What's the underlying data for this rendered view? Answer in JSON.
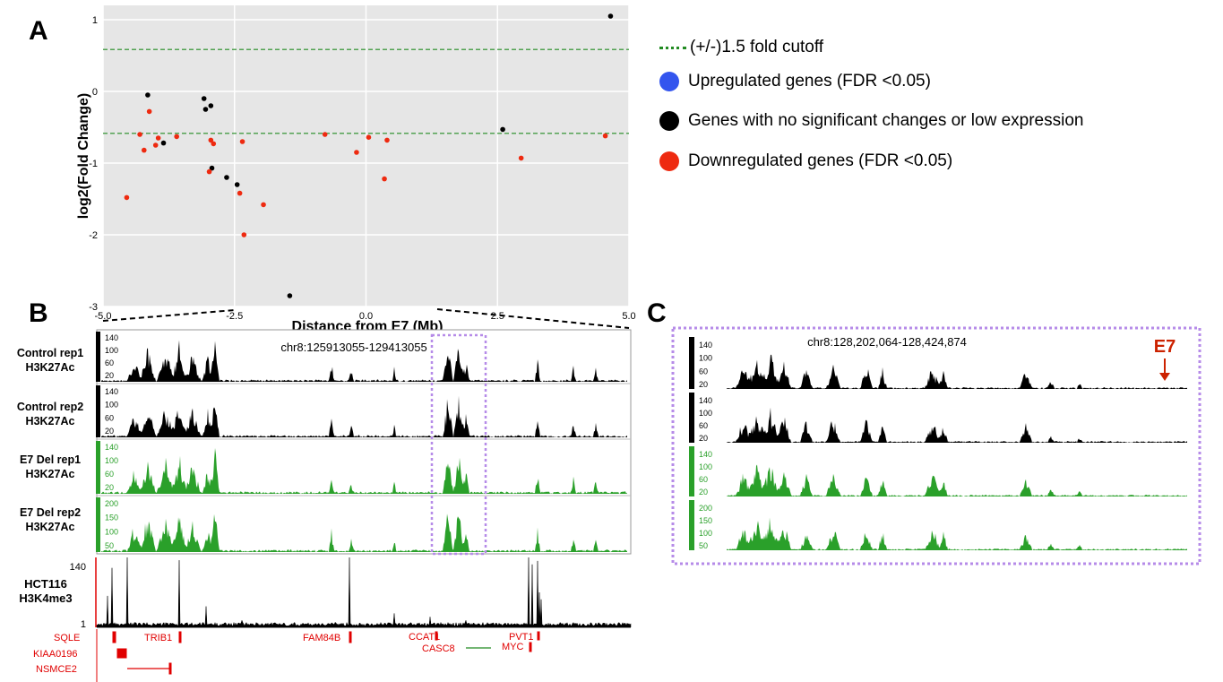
{
  "panels": {
    "a": "A",
    "b": "B",
    "c": "C"
  },
  "colors": {
    "upregulated": "#3355ee",
    "unchanged": "#000000",
    "downregulated": "#ee2a10",
    "cutoff": "#228b22",
    "control_track": "#000000",
    "deletion_track": "#2aa02a",
    "highlight_box": "#b68be8",
    "gene": "#e00000",
    "panel_bg": "#e6e6e6"
  },
  "legend": {
    "cutoff": "(+/-)1.5 fold cutoff",
    "up": "Upregulated genes (FDR <0.05)",
    "unchanged": "Genes with no significant changes or low expression",
    "down": "Downregulated genes (FDR <0.05)"
  },
  "chart_data": {
    "type": "scatter",
    "xlabel": "Distance from E7 (Mb)",
    "ylabel": "log2(Fold Change)",
    "xlim": [
      -5.0,
      5.0
    ],
    "ylim": [
      -3.0,
      1.2
    ],
    "xticks": [
      -5.0,
      -2.5,
      0.0,
      2.5,
      5.0
    ],
    "yticks": [
      1,
      0,
      -1,
      -2,
      -3
    ],
    "cutoffs": [
      0.585,
      -0.585
    ],
    "grid": true,
    "series": [
      {
        "name": "Genes with no significant changes or low expression",
        "color": "#000000",
        "points": [
          [
            -4.15,
            -0.05
          ],
          [
            -3.85,
            -0.72
          ],
          [
            -3.08,
            -0.1
          ],
          [
            -3.05,
            -0.25
          ],
          [
            -2.95,
            -0.2
          ],
          [
            -2.93,
            -1.07
          ],
          [
            -2.65,
            -1.2
          ],
          [
            -2.45,
            -1.3
          ],
          [
            -1.45,
            -2.85
          ],
          [
            2.6,
            -0.53
          ],
          [
            4.65,
            1.05
          ]
        ]
      },
      {
        "name": "Downregulated genes (FDR <0.05)",
        "color": "#ee2a10",
        "points": [
          [
            -4.55,
            -1.48
          ],
          [
            -4.3,
            -0.6
          ],
          [
            -4.22,
            -0.82
          ],
          [
            -4.12,
            -0.28
          ],
          [
            -4.0,
            -0.75
          ],
          [
            -3.95,
            -0.65
          ],
          [
            -3.6,
            -0.63
          ],
          [
            -2.98,
            -1.12
          ],
          [
            -2.95,
            -0.68
          ],
          [
            -2.9,
            -0.73
          ],
          [
            -2.4,
            -1.42
          ],
          [
            -2.35,
            -0.7
          ],
          [
            -2.32,
            -2.0
          ],
          [
            -1.95,
            -1.58
          ],
          [
            -0.78,
            -0.6
          ],
          [
            -0.18,
            -0.85
          ],
          [
            0.05,
            -0.64
          ],
          [
            0.35,
            -1.22
          ],
          [
            0.4,
            -0.68
          ],
          [
            2.95,
            -0.93
          ],
          [
            4.55,
            -0.62
          ]
        ]
      }
    ]
  },
  "panel_b": {
    "region": "chr8:125913055-129413055",
    "tracks": [
      {
        "label": "Control rep1\nH3K27Ac",
        "ticks": [
          "140",
          "100",
          "60",
          "20"
        ],
        "style": "control"
      },
      {
        "label": "Control rep2\nH3K27Ac",
        "ticks": [
          "140",
          "100",
          "60",
          "20"
        ],
        "style": "control"
      },
      {
        "label": "E7 Del rep1\nH3K27Ac",
        "ticks": [
          "140",
          "100",
          "60",
          "20"
        ],
        "style": "deletion"
      },
      {
        "label": "E7 Del rep2\nH3K27Ac",
        "ticks": [
          "200",
          "150",
          "100",
          "50"
        ],
        "style": "deletion"
      }
    ],
    "h3k4me3": {
      "label": "HCT116\nH3K4me3",
      "max": "140",
      "min": "1"
    },
    "genes": [
      "SQLE",
      "TRIB1",
      "FAM84B",
      "CCAT1",
      "PVT1",
      "KIAA0196",
      "CASC8",
      "MYC",
      "NSMCE2"
    ]
  },
  "panel_c": {
    "region": "chr8:128,202,064-128,424,874",
    "marker": "E7",
    "tracks": [
      {
        "ticks": [
          "140",
          "100",
          "60",
          "20"
        ],
        "style": "control"
      },
      {
        "ticks": [
          "140",
          "100",
          "60",
          "20"
        ],
        "style": "control"
      },
      {
        "ticks": [
          "140",
          "100",
          "60",
          "20"
        ],
        "style": "deletion"
      },
      {
        "ticks": [
          "200",
          "150",
          "100",
          "50"
        ],
        "style": "deletion"
      }
    ]
  }
}
